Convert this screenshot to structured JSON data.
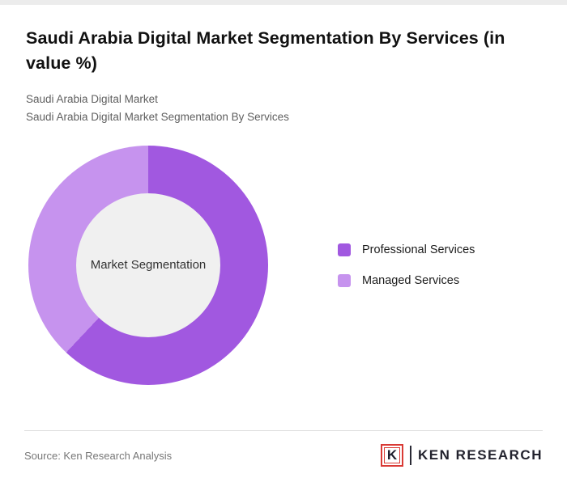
{
  "page": {
    "title": "Saudi Arabia Digital Market Segmentation By Services (in value %)",
    "subtitle_1": "Saudi Arabia Digital Market",
    "subtitle_2": "Saudi Arabia Digital Market Segmentation By Services",
    "source": "Source: Ken Research Analysis",
    "brand": "KEN RESEARCH",
    "brand_mark": "K"
  },
  "chart_data": {
    "type": "pie",
    "donut": true,
    "title": "Saudi Arabia Digital Market Segmentation By Services (in value %)",
    "center_label": "Market Segmentation",
    "categories": [
      "Professional Services",
      "Managed Services"
    ],
    "values": [
      62,
      38
    ],
    "colors": [
      "#a158e0",
      "#c693ee"
    ],
    "hole_color": "#f0f0f0",
    "legend_position": "right",
    "start_angle_deg": 0,
    "direction": "clockwise"
  }
}
